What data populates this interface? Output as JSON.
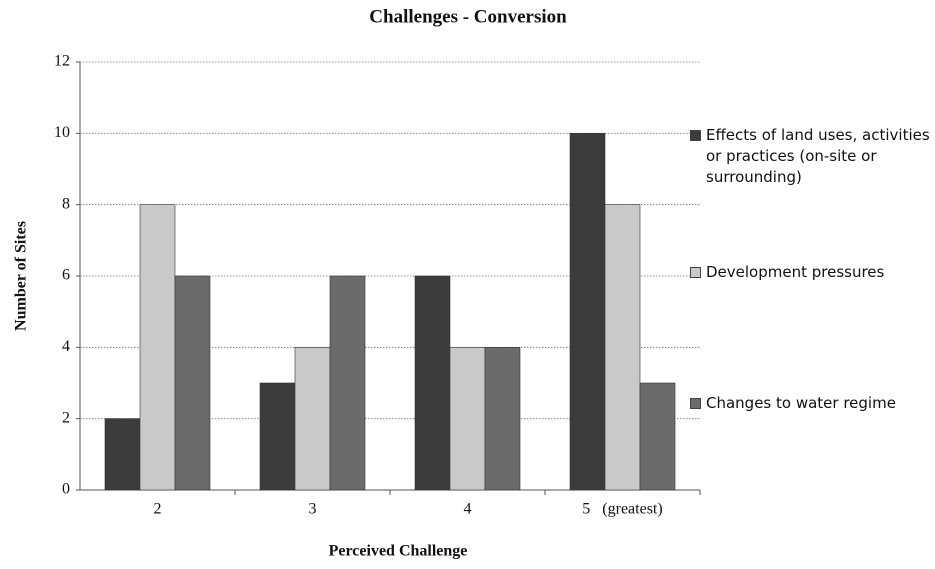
{
  "chart_data": {
    "type": "bar",
    "title": "Challenges - Conversion",
    "x_label": "Perceived Challenge",
    "y_label": "Number of Sites",
    "categories": [
      "2",
      "3",
      "4",
      "5   (greatest)"
    ],
    "series": [
      {
        "name": "Effects of land uses, activities or practices (on-site or surrounding)",
        "color": "#3c3c3c",
        "values": [
          2,
          3,
          6,
          10
        ]
      },
      {
        "name": "Development pressures",
        "color": "#c9c9c9",
        "values": [
          8,
          4,
          4,
          8
        ]
      },
      {
        "name": "Changes to water regime",
        "color": "#6b6b6b",
        "values": [
          6,
          6,
          4,
          3
        ]
      }
    ],
    "ylim": [
      0,
      12
    ],
    "yticks": [
      0,
      2,
      4,
      6,
      8,
      10,
      12
    ],
    "grid": true,
    "legend": "right"
  }
}
